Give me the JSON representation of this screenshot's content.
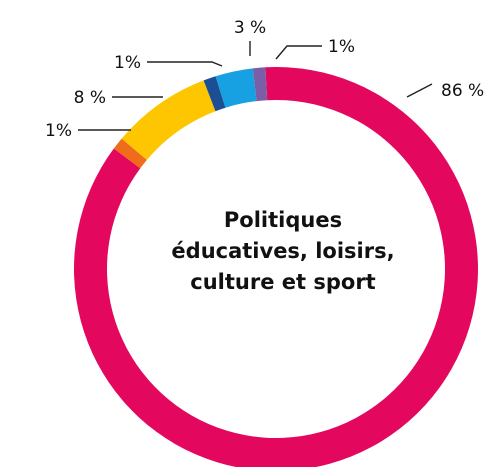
{
  "chart_data": {
    "type": "pie",
    "variant": "donut",
    "title": "",
    "center_label": [
      "Politiques",
      "éducatives, loisirs,",
      "culture et sport"
    ],
    "slices": [
      {
        "value": 86,
        "label": "86 %",
        "color": "#e3075d"
      },
      {
        "value": 1,
        "label": "1%",
        "color": "#ef6d1a"
      },
      {
        "value": 8,
        "label": "8 %",
        "color": "#fdc600"
      },
      {
        "value": 1,
        "label": "1%",
        "color": "#1b4e94"
      },
      {
        "value": 3,
        "label": "3 %",
        "color": "#17a0e2"
      },
      {
        "value": 1,
        "label": "1%",
        "color": "#7b5ea8"
      }
    ],
    "legend": "none",
    "grid": false
  }
}
